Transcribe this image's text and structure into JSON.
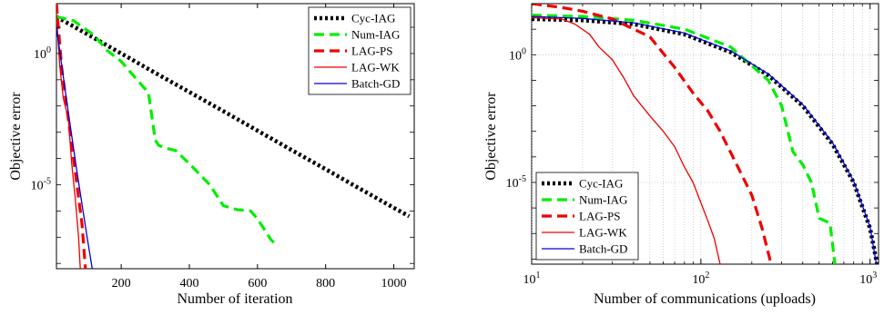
{
  "chart_data": [
    {
      "type": "line",
      "xlabel": "Number of iteration",
      "ylabel": "Objective error",
      "xscale": "linear",
      "yscale": "log",
      "xlim": [
        10,
        1060
      ],
      "ylim_log10": [
        -8.2,
        1.9
      ],
      "xticks": [
        200,
        400,
        600,
        800,
        1000
      ],
      "xtick_labels": [
        "200",
        "400",
        "600",
        "800",
        "1000"
      ],
      "yticks_log10": [
        0,
        -5
      ],
      "ytick_labels": [
        {
          "base": "10",
          "exp": "0"
        },
        {
          "base": "10",
          "exp": "-5"
        }
      ],
      "grid": false,
      "legend_position": "top-right",
      "series": [
        {
          "name": "Cyc-IAG",
          "color": "#000000",
          "style": "dotted",
          "x": [
            10,
            100,
            200,
            300,
            400,
            500,
            600,
            700,
            800,
            900,
            1000,
            1045
          ],
          "y_log10": [
            1.4,
            0.74,
            0.0,
            -0.74,
            -1.47,
            -2.2,
            -2.94,
            -3.68,
            -4.41,
            -5.15,
            -5.88,
            -6.2
          ]
        },
        {
          "name": "Num-IAG",
          "color": "#00ee00",
          "style": "dashed",
          "x": [
            10,
            60,
            120,
            160,
            200,
            240,
            280,
            300,
            310,
            330,
            360,
            400,
            460,
            500,
            540,
            580,
            600,
            640,
            655
          ],
          "y_log10": [
            1.4,
            1.25,
            0.7,
            0.1,
            -0.3,
            -0.9,
            -1.5,
            -3.3,
            -3.5,
            -3.6,
            -3.7,
            -4.2,
            -5.0,
            -5.8,
            -5.95,
            -6.0,
            -6.3,
            -7.1,
            -7.3
          ]
        },
        {
          "name": "LAG-PS",
          "color": "#ee0000",
          "style": "dashed",
          "x": [
            10,
            25,
            40,
            55,
            70,
            85,
            95
          ],
          "y_log10": [
            1.9,
            -0.5,
            -2.0,
            -3.5,
            -5.0,
            -6.5,
            -8.2
          ]
        },
        {
          "name": "LAG-WK",
          "color": "#ee0000",
          "style": "solid",
          "x": [
            10,
            20,
            30,
            45,
            55,
            65,
            75,
            80
          ],
          "y_log10": [
            1.5,
            -0.5,
            -1.7,
            -2.5,
            -4.2,
            -5.5,
            -7.0,
            -8.2
          ]
        },
        {
          "name": "Batch-GD",
          "color": "#0000dd",
          "style": "solid",
          "x": [
            10,
            40,
            70,
            100,
            115
          ],
          "y_log10": [
            1.0,
            -1.8,
            -4.5,
            -7.0,
            -8.2
          ]
        }
      ]
    },
    {
      "type": "line",
      "xlabel": "Number of communications (uploads)",
      "ylabel": "Objective error",
      "xscale": "log",
      "yscale": "log",
      "xlim_log10": [
        1,
        3.05
      ],
      "ylim_log10": [
        -8.2,
        2.0
      ],
      "xticks_log10": [
        1,
        2,
        3
      ],
      "xtick_labels": [
        {
          "base": "10",
          "exp": "1"
        },
        {
          "base": "10",
          "exp": "2"
        },
        {
          "base": "10",
          "exp": "3"
        }
      ],
      "yticks_log10": [
        0,
        -5
      ],
      "ytick_labels": [
        {
          "base": "10",
          "exp": "0"
        },
        {
          "base": "10",
          "exp": "-5"
        }
      ],
      "grid": true,
      "legend_position": "bottom-left",
      "series": [
        {
          "name": "Cyc-IAG",
          "color": "#000000",
          "style": "dotted",
          "x": [
            10,
            20,
            40,
            80,
            150,
            250,
            400,
            600,
            800,
            1000,
            1100
          ],
          "y_log10": [
            1.4,
            1.35,
            1.2,
            0.8,
            0.1,
            -0.8,
            -2.0,
            -3.5,
            -5.0,
            -6.8,
            -8.2
          ]
        },
        {
          "name": "Num-IAG",
          "color": "#00ee00",
          "style": "dashed",
          "x": [
            10,
            20,
            40,
            80,
            150,
            250,
            300,
            350,
            400,
            450,
            500,
            540,
            580,
            620
          ],
          "y_log10": [
            1.55,
            1.5,
            1.35,
            1.0,
            0.3,
            -1.0,
            -2.0,
            -3.8,
            -4.3,
            -5.0,
            -6.4,
            -6.5,
            -6.6,
            -8.2
          ]
        },
        {
          "name": "LAG-PS",
          "color": "#ee0000",
          "style": "dashed",
          "x": [
            10,
            15,
            20,
            30,
            50,
            70,
            90,
            110,
            130,
            160,
            200,
            230,
            260
          ],
          "y_log10": [
            2.0,
            1.85,
            1.7,
            1.4,
            0.7,
            -0.5,
            -1.5,
            -2.2,
            -3.0,
            -4.2,
            -5.5,
            -6.8,
            -8.2
          ]
        },
        {
          "name": "LAG-WK",
          "color": "#ee0000",
          "style": "solid",
          "x": [
            10,
            15,
            18,
            22,
            25,
            30,
            35,
            40,
            50,
            60,
            70,
            80,
            90,
            100,
            110,
            120,
            130
          ],
          "y_log10": [
            1.45,
            1.4,
            1.2,
            0.8,
            0.3,
            -0.2,
            -0.9,
            -1.6,
            -2.4,
            -3.0,
            -3.6,
            -4.4,
            -5.0,
            -5.8,
            -6.5,
            -7.2,
            -8.2
          ]
        },
        {
          "name": "Batch-GD",
          "color": "#0000dd",
          "style": "solid",
          "x": [
            10,
            20,
            40,
            80,
            150,
            250,
            400,
            600,
            800,
            1000,
            1090
          ],
          "y_log10": [
            1.5,
            1.42,
            1.25,
            0.85,
            0.15,
            -0.75,
            -1.95,
            -3.45,
            -4.95,
            -6.75,
            -8.2
          ]
        }
      ]
    }
  ]
}
